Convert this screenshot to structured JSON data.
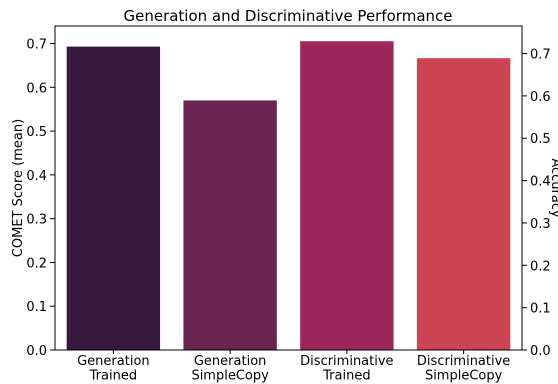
{
  "chart_data": {
    "type": "bar",
    "title": "Generation and Discriminative Performance",
    "categories": [
      [
        "Generation",
        "Trained"
      ],
      [
        "Generation",
        "SimpleCopy"
      ],
      [
        "Discriminative",
        "Trained"
      ],
      [
        "Discriminative",
        "SimpleCopy"
      ]
    ],
    "series": [
      {
        "values": [
          0.693,
          0.57,
          0.694,
          0.656
        ],
        "axis": [
          "left",
          "left",
          "right",
          "right"
        ],
        "colors": [
          "#35193e",
          "#6a2450",
          "#9d275c",
          "#cc4453"
        ]
      }
    ],
    "ylabel": "COMET Score (mean)",
    "ylabel_right": "Accuracy",
    "ylim": [
      0,
      0.74
    ],
    "yticks": [
      "0.0",
      "0.1",
      "0.2",
      "0.3",
      "0.4",
      "0.5",
      "0.6",
      "0.7"
    ],
    "ylim_right": [
      0,
      0.765
    ],
    "yticks_right": [
      "0.0",
      "0.1",
      "0.2",
      "0.3",
      "0.4",
      "0.5",
      "0.6",
      "0.7"
    ],
    "values_right_axis": [
      null,
      null,
      0.729,
      0.689
    ],
    "grid": false,
    "legend": "none"
  }
}
